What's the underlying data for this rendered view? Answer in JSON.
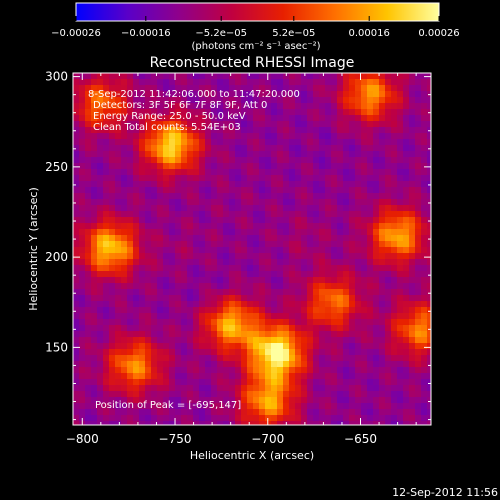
{
  "chart_data": {
    "type": "heatmap",
    "title": "Reconstructed RHESSI Image",
    "xlabel": "Heliocentric X (arcsec)",
    "ylabel": "Heliocentric Y (arcsec)",
    "xlim": [
      -805,
      -612
    ],
    "ylim": [
      107,
      302
    ],
    "x_ticks": [
      -800,
      -750,
      -700,
      -650
    ],
    "x_tick_labels": [
      "−800",
      "−750",
      "−700",
      "−650"
    ],
    "y_ticks": [
      150,
      200,
      250,
      300
    ],
    "y_tick_labels": [
      "150",
      "200",
      "250",
      "300"
    ],
    "colorbar": {
      "min": -0.00026,
      "max": 0.00026,
      "ticks": [
        -0.00026,
        -0.00016,
        -5.2e-05,
        5.2e-05,
        0.00016,
        0.00026
      ],
      "tick_labels": [
        "−0.00026",
        "−0.00016",
        "−5.2e−05",
        "5.2e−05",
        "0.00016",
        "0.00026"
      ],
      "unit_label": "(photons cm⁻² s⁻¹ asec⁻²)",
      "colors": [
        "#0000ff",
        "#5a00c8",
        "#90008a",
        "#c00040",
        "#e82000",
        "#ff7000",
        "#ffc400",
        "#ffffa0"
      ]
    },
    "info_lines": [
      "8-Sep-2012 11:42:06.000 to 11:47:20.000",
      "Detectors: 3F 5F 6F 7F 8F 9F, Att 0",
      "Energy Range: 25.0 - 50.0 keV",
      "Clean     Total counts: 5.54E+03"
    ],
    "peak_label": "Position of Peak = [-695,147]",
    "peak": [
      -695,
      147
    ],
    "hotspots": [
      {
        "x": -695,
        "y": 147,
        "value": 0.00026
      },
      {
        "x": -752,
        "y": 262,
        "value": 0.00021
      },
      {
        "x": -785,
        "y": 205,
        "value": 0.00019
      },
      {
        "x": -720,
        "y": 163,
        "value": 0.00017
      },
      {
        "x": -630,
        "y": 212,
        "value": 0.00016
      },
      {
        "x": -700,
        "y": 120,
        "value": 0.00015
      },
      {
        "x": -645,
        "y": 290,
        "value": 0.00014
      },
      {
        "x": -772,
        "y": 140,
        "value": 0.00013
      },
      {
        "x": -618,
        "y": 160,
        "value": 0.00012
      },
      {
        "x": -790,
        "y": 285,
        "value": 0.0001
      },
      {
        "x": -665,
        "y": 175,
        "value": 0.00011
      },
      {
        "x": -720,
        "y": 230,
        "value": -0.0001
      },
      {
        "x": -730,
        "y": 178,
        "value": -0.00014
      },
      {
        "x": -670,
        "y": 262,
        "value": -0.00012
      },
      {
        "x": -745,
        "y": 205,
        "value": -9e-05
      },
      {
        "x": -680,
        "y": 210,
        "value": -8e-05
      }
    ]
  },
  "footer": {
    "date": "12-Sep-2012 11:56"
  }
}
